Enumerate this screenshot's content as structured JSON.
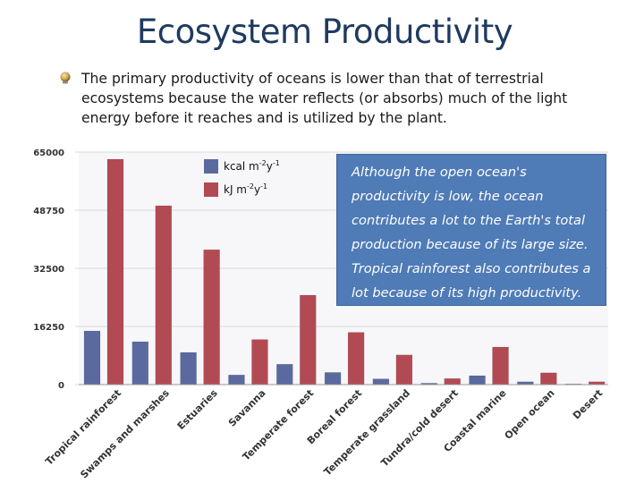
{
  "slide": {
    "title": "Ecosystem Productivity",
    "bullet": "The primary productivity of oceans is lower than that of terrestrial ecosystems because the water reflects (or absorbs) much of the light energy before it reaches and is utilized by the plant.",
    "callout": "Although the open ocean's productivity is low, the ocean contributes a lot to the Earth's total production because of its large size. Tropical rainforest also contributes a lot because of its high productivity."
  },
  "legend": {
    "kcal": {
      "base": "kcal m",
      "exp1": "-2",
      "mid": "y",
      "exp2": "-1"
    },
    "kj": {
      "base": "kJ m",
      "exp1": "-2",
      "mid": "y",
      "exp2": "-1"
    }
  },
  "colors": {
    "kcal": "#5b6a9e",
    "kj": "#b24a54",
    "grid": "#d9d9d9",
    "axis_text": "#333333",
    "title": "#1f3a5f",
    "callout_bg": "#4f7bb6"
  },
  "chart_data": {
    "type": "bar",
    "title": "",
    "xlabel": "",
    "ylabel": "",
    "ylim": [
      0,
      65000
    ],
    "yticks": [
      "0",
      "16250",
      "32500",
      "48750",
      "65000"
    ],
    "ytick_values": [
      0,
      16250,
      32500,
      48750,
      65000
    ],
    "categories": [
      "Tropical rainforest",
      "Swamps and marshes",
      "Estuaries",
      "Savanna",
      "Temperate forest",
      "Boreal forest",
      "Temperate grassland",
      "Tundra/cold desert",
      "Coastal marine",
      "Open ocean",
      "Desert"
    ],
    "series": [
      {
        "name": "kcal m-2y-1",
        "values": [
          15000,
          12000,
          9000,
          2700,
          5700,
          3400,
          1600,
          400,
          2500,
          800,
          200
        ]
      },
      {
        "name": "kJ m-2y-1",
        "values": [
          63000,
          50000,
          37700,
          12600,
          25000,
          14600,
          8300,
          1700,
          10500,
          3300,
          800
        ]
      }
    ]
  }
}
